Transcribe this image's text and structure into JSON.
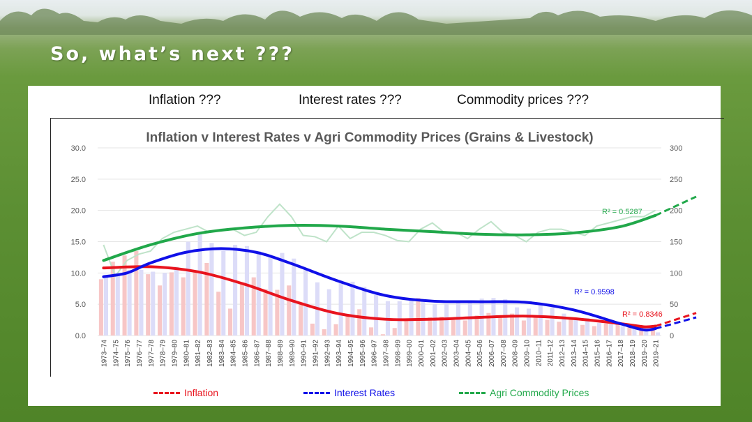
{
  "headline": "So, what’s next ???",
  "questions": [
    "Inflation ???",
    "Interest rates ???",
    "Commodity prices ???"
  ],
  "legend": {
    "inflation": "Inflation",
    "interest": "Interest Rates",
    "commodity": "Agri Commodity Prices"
  },
  "colors": {
    "inflation": "#e8141e",
    "inflation_bar": "#f7c6c6",
    "interest": "#1010e8",
    "interest_bar": "#dcdcf8",
    "commodity": "#21a84a",
    "commodity_line": "#bfe3c9"
  },
  "chart_data": {
    "type": "bar",
    "title": "Inflation v Interest Rates v Agri Commodity Prices (Grains & Livestock)",
    "categories": [
      "1973–74",
      "1974–75",
      "1975–76",
      "1976–77",
      "1977–78",
      "1978–79",
      "1979–80",
      "1980–81",
      "1981–82",
      "1982–83",
      "1983–84",
      "1984–85",
      "1985–86",
      "1986–87",
      "1987–88",
      "1988–89",
      "1989–90",
      "1990–91",
      "1991–92",
      "1992–93",
      "1993–94",
      "1994–95",
      "1995–96",
      "1996–97",
      "1997–98",
      "1998–99",
      "1999–00",
      "2000–01",
      "2001–02",
      "2002–03",
      "2003–04",
      "2004–05",
      "2005–06",
      "2006–07",
      "2007–08",
      "2008–09",
      "2009–10",
      "2010–11",
      "2011–12",
      "2012–13",
      "2013–14",
      "2014–15",
      "2015–16",
      "2016–17",
      "2017–18",
      "2018–19",
      "2019–20",
      "2019–21"
    ],
    "y_left": {
      "min": 0,
      "max": 30,
      "ticks": [
        "0.0",
        "5.0",
        "10.0",
        "15.0",
        "20.0",
        "25.0",
        "30.0"
      ]
    },
    "y_right": {
      "min": 0,
      "max": 300,
      "ticks": [
        "0",
        "50",
        "100",
        "150",
        "200",
        "250",
        "300"
      ]
    },
    "series": [
      {
        "name": "Inflation",
        "kind": "bar",
        "axis": "left",
        "values": [
          9.0,
          11.8,
          12.8,
          13.5,
          9.8,
          8.0,
          10.1,
          9.3,
          10.4,
          11.6,
          7.0,
          4.3,
          8.4,
          9.3,
          7.4,
          7.3,
          8.0,
          5.3,
          1.9,
          1.0,
          1.8,
          3.2,
          4.2,
          1.3,
          0.2,
          1.2,
          2.4,
          6.0,
          2.9,
          3.0,
          2.5,
          2.4,
          3.2,
          3.6,
          3.0,
          3.5,
          2.4,
          3.0,
          2.5,
          2.2,
          2.8,
          1.7,
          1.5,
          1.9,
          2.0,
          1.6,
          0.8,
          1.5
        ]
      },
      {
        "name": "Interest Rates",
        "kind": "bar",
        "axis": "left",
        "values": [
          9.5,
          10.0,
          10.5,
          10.5,
          10.2,
          10.0,
          11.0,
          15.0,
          16.5,
          14.8,
          13.5,
          14.5,
          14.3,
          13.5,
          12.5,
          13.2,
          12.3,
          10.5,
          8.5,
          7.4,
          8.6,
          8.6,
          7.8,
          6.5,
          5.5,
          5.5,
          5.8,
          5.5,
          5.0,
          5.0,
          5.3,
          5.6,
          5.9,
          6.0,
          5.8,
          4.5,
          4.3,
          4.9,
          4.5,
          3.5,
          2.8,
          2.8,
          2.0,
          1.8,
          1.5,
          1.3,
          0.8,
          0.5
        ]
      },
      {
        "name": "Agri Commodity Prices",
        "kind": "line",
        "axis": "right",
        "values": [
          145,
          95,
          120,
          130,
          135,
          155,
          165,
          170,
          175,
          165,
          170,
          170,
          160,
          165,
          190,
          210,
          190,
          160,
          158,
          150,
          175,
          155,
          165,
          165,
          160,
          152,
          150,
          170,
          180,
          165,
          165,
          155,
          170,
          182,
          165,
          160,
          150,
          165,
          170,
          170,
          165,
          160,
          175,
          180,
          185,
          190,
          190,
          200
        ]
      }
    ],
    "trendlines": [
      {
        "name": "Inflation",
        "r2_label": "R² = 0.8346",
        "start": 10.8,
        "points": [
          [
            0,
            10.8
          ],
          [
            4,
            11.0
          ],
          [
            8,
            10.2
          ],
          [
            12,
            8.2
          ],
          [
            16,
            5.6
          ],
          [
            20,
            3.5
          ],
          [
            24,
            2.6
          ],
          [
            28,
            2.6
          ],
          [
            32,
            2.9
          ],
          [
            36,
            3.1
          ],
          [
            40,
            2.7
          ],
          [
            44,
            1.9
          ],
          [
            46,
            1.4
          ],
          [
            47,
            1.5
          ]
        ],
        "forecast_end": 3.6
      },
      {
        "name": "Interest Rates",
        "r2_label": "R² = 0.9598",
        "points": [
          [
            0,
            9.4
          ],
          [
            2,
            10.0
          ],
          [
            4,
            11.6
          ],
          [
            7,
            13.3
          ],
          [
            10,
            13.9
          ],
          [
            13,
            13.3
          ],
          [
            16,
            11.5
          ],
          [
            20,
            8.7
          ],
          [
            24,
            6.4
          ],
          [
            28,
            5.5
          ],
          [
            32,
            5.4
          ],
          [
            36,
            5.3
          ],
          [
            40,
            4.1
          ],
          [
            44,
            1.9
          ],
          [
            46,
            0.9
          ],
          [
            47,
            1.1
          ]
        ],
        "forecast_end": 2.9
      },
      {
        "name": "Agri Commodity Prices",
        "r2_label": "R² = 0.5287",
        "points": [
          [
            0,
            120
          ],
          [
            4,
            145
          ],
          [
            8,
            163
          ],
          [
            12,
            172
          ],
          [
            16,
            176
          ],
          [
            20,
            175
          ],
          [
            24,
            170
          ],
          [
            28,
            166
          ],
          [
            32,
            162
          ],
          [
            36,
            161
          ],
          [
            40,
            164
          ],
          [
            44,
            174
          ],
          [
            47,
            192
          ]
        ],
        "forecast_end": 222
      }
    ]
  }
}
